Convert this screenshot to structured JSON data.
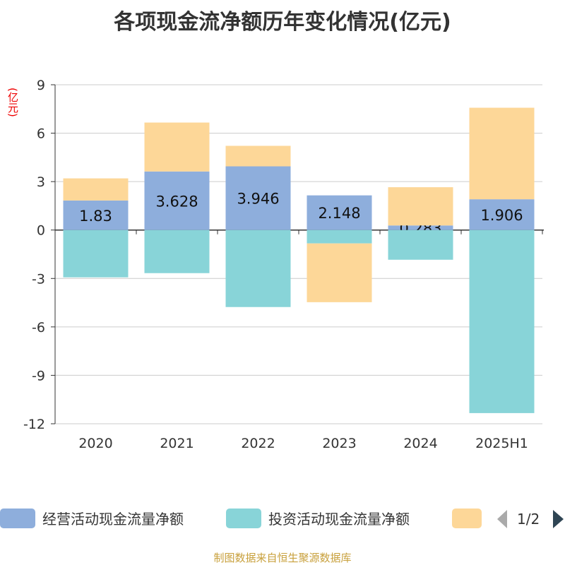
{
  "chart_data": {
    "type": "bar",
    "stacked": true,
    "title": "各项现金流净额历年变化情况(亿元)",
    "ylabel": "(亿元)",
    "categories": [
      "2020",
      "2021",
      "2022",
      "2023",
      "2024",
      "2025H1"
    ],
    "yticks": [
      9,
      6,
      3,
      0,
      -3,
      -6,
      -9,
      -12
    ],
    "ylim": [
      -12,
      9
    ],
    "grid": true,
    "legend_position": "bottom",
    "legend_page": "1/2",
    "series": [
      {
        "name": "经营活动现金流量净额",
        "color": "#8eaedc",
        "values": [
          1.83,
          3.628,
          3.946,
          2.148,
          0.283,
          1.906
        ],
        "labels": [
          "1.83",
          "3.628",
          "3.946",
          "2.148",
          "0.283",
          "1.906"
        ]
      },
      {
        "name": "投资活动现金流量净额",
        "color": "#88d4d8",
        "values": [
          -2.93,
          -2.67,
          -4.77,
          -0.83,
          -1.84,
          -11.34
        ]
      },
      {
        "color": "#fdd798",
        "values": [
          1.37,
          3.03,
          1.27,
          -3.64,
          2.37,
          5.67
        ]
      }
    ]
  },
  "footer": "制图数据来自恒生聚源数据库"
}
